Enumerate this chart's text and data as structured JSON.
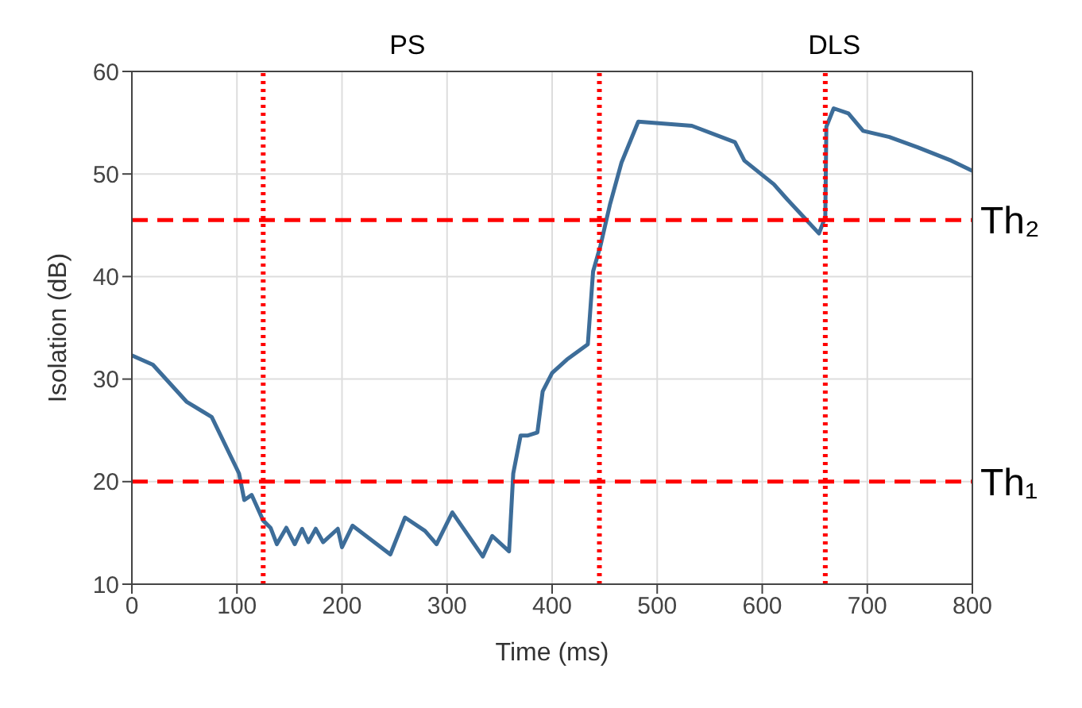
{
  "chart_data": {
    "type": "line",
    "xlabel": "Time (ms)",
    "ylabel": "Isolation (dB)",
    "series": [
      {
        "color": "#3d6d99",
        "x": [
          0,
          20,
          52,
          76,
          102,
          107,
          114,
          125,
          132,
          138,
          147,
          155,
          162,
          168,
          175,
          182,
          196,
          200,
          210,
          246,
          260,
          279,
          290,
          305,
          334,
          343,
          359,
          363,
          370,
          377,
          386,
          391,
          400,
          414,
          434,
          439,
          446,
          455,
          466,
          482,
          533,
          574,
          583,
          611,
          624,
          654,
          660,
          661,
          668,
          682,
          696,
          721,
          748,
          780,
          800
        ],
        "values": [
          32.3,
          31.4,
          27.8,
          26.3,
          20.8,
          18.2,
          18.7,
          16.2,
          15.5,
          13.9,
          15.5,
          13.9,
          15.4,
          14.1,
          15.4,
          14.1,
          15.4,
          13.6,
          15.7,
          12.9,
          16.5,
          15.2,
          13.9,
          17.0,
          12.7,
          14.7,
          13.2,
          20.8,
          24.5,
          24.5,
          24.8,
          28.8,
          30.6,
          31.9,
          33.4,
          40.5,
          43.0,
          47.0,
          51.1,
          55.1,
          54.7,
          53.1,
          51.3,
          49.0,
          47.5,
          44.2,
          45.8,
          54.6,
          56.4,
          55.9,
          54.2,
          53.6,
          52.6,
          51.3,
          50.3
        ]
      }
    ],
    "xlim": [
      0,
      800
    ],
    "xticks": [
      0,
      100,
      200,
      300,
      400,
      500,
      600,
      700,
      800
    ],
    "ylim": [
      10,
      60
    ],
    "yticks": [
      10,
      20,
      30,
      40,
      50,
      60
    ],
    "grid": true,
    "marker": "none",
    "line_style": "solid",
    "ref_lines": [
      {
        "axis": "y",
        "value": 20,
        "label": "Th₁",
        "color": "#ff0000",
        "line_style": "dashed"
      },
      {
        "axis": "y",
        "value": 45.5,
        "label": "Th₂",
        "color": "#ff0000",
        "line_style": "dashed"
      },
      {
        "axis": "x",
        "value": 125,
        "color": "#ff0000",
        "line_style": "dotted"
      },
      {
        "axis": "x",
        "value": 445,
        "color": "#ff0000",
        "line_style": "dotted"
      },
      {
        "axis": "x",
        "value": 660,
        "color": "#ff0000",
        "line_style": "dotted"
      }
    ],
    "annotations": [
      "PS",
      "DLS"
    ]
  }
}
